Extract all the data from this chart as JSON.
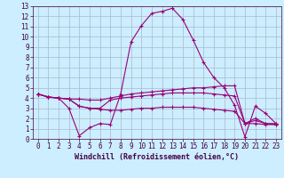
{
  "xlabel": "Windchill (Refroidissement éolien,°C)",
  "xlim": [
    -0.5,
    23.5
  ],
  "ylim": [
    0,
    13
  ],
  "xticks": [
    0,
    1,
    2,
    3,
    4,
    5,
    6,
    7,
    8,
    9,
    10,
    11,
    12,
    13,
    14,
    15,
    16,
    17,
    18,
    19,
    20,
    21,
    22,
    23
  ],
  "yticks": [
    0,
    1,
    2,
    3,
    4,
    5,
    6,
    7,
    8,
    9,
    10,
    11,
    12,
    13
  ],
  "bg_color": "#cceeff",
  "line_color": "#990077",
  "grid_color": "#aab8cc",
  "lines": [
    [
      4.4,
      4.1,
      4.0,
      3.0,
      0.3,
      1.1,
      1.5,
      1.4,
      4.4,
      9.5,
      11.1,
      12.3,
      12.5,
      12.8,
      11.7,
      9.7,
      7.5,
      6.0,
      5.0,
      3.3,
      0.2,
      3.2,
      2.5,
      1.5
    ],
    [
      4.4,
      4.1,
      4.0,
      3.9,
      3.9,
      3.8,
      3.8,
      4.0,
      4.2,
      4.4,
      4.5,
      4.6,
      4.7,
      4.8,
      4.9,
      5.0,
      5.0,
      5.1,
      5.2,
      5.2,
      1.5,
      2.0,
      1.5,
      1.5
    ],
    [
      4.4,
      4.1,
      4.0,
      3.9,
      3.2,
      3.0,
      3.0,
      3.8,
      4.0,
      4.1,
      4.2,
      4.3,
      4.4,
      4.5,
      4.5,
      4.5,
      4.5,
      4.4,
      4.3,
      4.2,
      1.5,
      1.8,
      1.5,
      1.4
    ],
    [
      4.4,
      4.1,
      4.0,
      3.9,
      3.2,
      3.0,
      2.9,
      2.8,
      2.8,
      2.9,
      3.0,
      3.0,
      3.1,
      3.1,
      3.1,
      3.1,
      3.0,
      2.9,
      2.8,
      2.7,
      1.5,
      1.5,
      1.4,
      1.4
    ]
  ],
  "tick_fontsize": 5.5,
  "xlabel_fontsize": 6.0
}
